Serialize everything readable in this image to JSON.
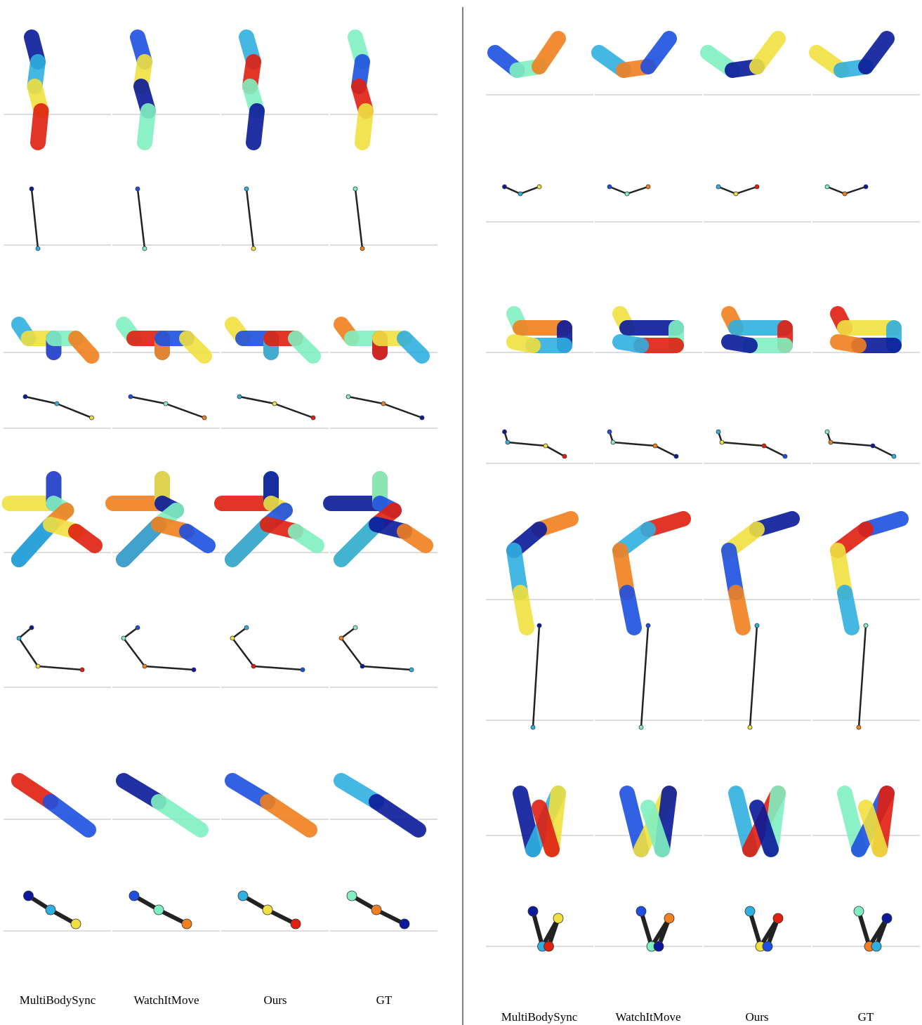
{
  "left_columns": [
    "MultiBodySync",
    "WatchItMove",
    "Ours",
    "GT"
  ],
  "right_columns": [
    "MultiBodySync",
    "WatchItMove",
    "Ours",
    "GT"
  ]
}
